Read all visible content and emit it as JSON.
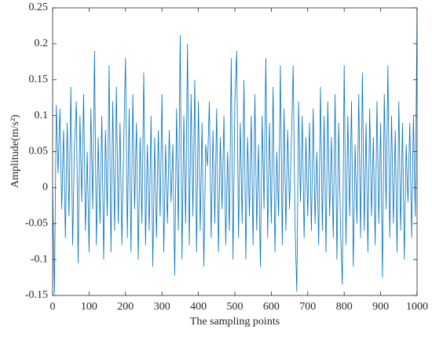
{
  "chart_data": {
    "type": "line",
    "xlabel": "The sampling points",
    "ylabel": "Amplitude(m/s²)",
    "color": "#0072bd",
    "xlim": [
      0,
      1000
    ],
    "xticks": [
      0,
      100,
      200,
      300,
      400,
      500,
      600,
      700,
      800,
      900,
      1000
    ],
    "ylim": [
      -0.15,
      0.25
    ],
    "yticks": [
      -0.15,
      -0.1,
      -0.05,
      0,
      0.05,
      0.1,
      0.15,
      0.2,
      0.25
    ],
    "x": [
      0,
      5,
      10,
      15,
      20,
      25,
      30,
      35,
      40,
      45,
      50,
      55,
      60,
      65,
      70,
      75,
      80,
      85,
      90,
      95,
      100,
      105,
      110,
      115,
      120,
      125,
      130,
      135,
      140,
      145,
      150,
      155,
      160,
      165,
      170,
      175,
      180,
      185,
      190,
      195,
      200,
      205,
      210,
      215,
      220,
      225,
      230,
      235,
      240,
      245,
      250,
      255,
      260,
      265,
      270,
      275,
      280,
      285,
      290,
      295,
      300,
      305,
      310,
      315,
      320,
      325,
      330,
      335,
      340,
      345,
      350,
      355,
      360,
      365,
      370,
      375,
      380,
      385,
      390,
      395,
      400,
      405,
      410,
      415,
      420,
      425,
      430,
      435,
      440,
      445,
      450,
      455,
      460,
      465,
      470,
      475,
      480,
      485,
      490,
      495,
      500,
      505,
      510,
      515,
      520,
      525,
      530,
      535,
      540,
      545,
      550,
      555,
      560,
      565,
      570,
      575,
      580,
      585,
      590,
      595,
      600,
      605,
      610,
      615,
      620,
      625,
      630,
      635,
      640,
      645,
      650,
      655,
      660,
      665,
      670,
      675,
      680,
      685,
      690,
      695,
      700,
      705,
      710,
      715,
      720,
      725,
      730,
      735,
      740,
      745,
      750,
      755,
      760,
      765,
      770,
      775,
      780,
      785,
      790,
      795,
      800,
      805,
      810,
      815,
      820,
      825,
      830,
      835,
      840,
      845,
      850,
      855,
      860,
      865,
      870,
      875,
      880,
      885,
      890,
      895,
      900,
      905,
      910,
      915,
      920,
      925,
      930,
      935,
      940,
      945,
      950,
      955,
      960,
      965,
      970,
      975,
      980,
      985,
      990,
      995,
      1000
    ],
    "values": [
      0,
      -0.148,
      0.115,
      0.02,
      0.11,
      -0.03,
      0.08,
      -0.07,
      0.09,
      -0.04,
      0.14,
      -0.08,
      0.06,
      0.12,
      -0.105,
      0.1,
      -0.02,
      0.13,
      -0.06,
      0.05,
      -0.09,
      0.11,
      -0.03,
      0.19,
      -0.08,
      0.07,
      -0.05,
      0.1,
      -0.1,
      0.08,
      -0.04,
      0.17,
      -0.09,
      0.12,
      -0.06,
      0.14,
      -0.05,
      0.09,
      -0.08,
      0.06,
      0.18,
      -0.07,
      0.11,
      -0.09,
      0.13,
      -0.03,
      0.09,
      -0.1,
      0.07,
      -0.05,
      0.16,
      -0.08,
      0.06,
      -0.06,
      0.1,
      -0.11,
      0.07,
      -0.07,
      0.08,
      -0.04,
      0.13,
      -0.09,
      0.06,
      -0.05,
      0.08,
      -0.02,
      0.06,
      -0.122,
      0.11,
      -0.06,
      0.212,
      -0.1,
      0.1,
      -0.05,
      0.2,
      -0.08,
      0.13,
      -0.04,
      0.15,
      -0.09,
      0.12,
      -0.06,
      0.09,
      -0.11,
      0.06,
      0.03,
      0.12,
      -0.07,
      0.08,
      -0.05,
      0.11,
      -0.09,
      0.07,
      -0.03,
      0.1,
      -0.08,
      0.05,
      -0.06,
      0.18,
      -0.1,
      0.12,
      0.19,
      -0.07,
      0.09,
      -0.05,
      0.15,
      -0.1,
      0.07,
      -0.04,
      0.1,
      -0.08,
      0.13,
      -0.06,
      0.06,
      -0.11,
      0.1,
      -0.03,
      0.18,
      -0.07,
      0.09,
      -0.05,
      0.14,
      -0.09,
      0.05,
      -0.04,
      0.17,
      -0.08,
      0.11,
      -0.06,
      0.08,
      -0.03,
      0.06,
      0.17,
      -0.05,
      -0.145,
      0.12,
      -0.02,
      0.1,
      -0.07,
      0.07,
      -0.04,
      0.09,
      -0.06,
      0.11,
      -0.05,
      0.05,
      -0.08,
      0.14,
      -0.06,
      0.1,
      -0.09,
      0.12,
      -0.04,
      0.07,
      -0.07,
      0.13,
      -0.1,
      0.09,
      -0.06,
      -0.135,
      0.17,
      -0.08,
      0.1,
      -0.04,
      0.12,
      -0.11,
      0.06,
      -0.05,
      0.13,
      -0.07,
      0.16,
      -0.06,
      0.09,
      -0.09,
      0.11,
      -0.04,
      0.07,
      -0.08,
      0.12,
      -0.05,
      0.09,
      -0.125,
      0.13,
      -0.03,
      0.17,
      -0.07,
      0.1,
      -0.05,
      0.08,
      -0.09,
      0.12,
      -0.06,
      0.09,
      -0.1,
      0.06,
      -0.02,
      0.09,
      -0.07,
      0.1,
      -0.04,
      0.25
    ]
  }
}
